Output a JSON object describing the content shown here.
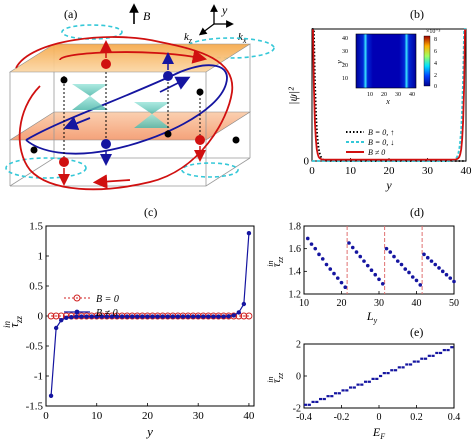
{
  "figure": {
    "panel_labels": {
      "a": "(a)",
      "b": "(b)",
      "c": "(c)",
      "d": "(d)",
      "e": "(e)"
    },
    "panel_a": {
      "axis_B": "B",
      "axis_y": "y",
      "axis_kz": "k",
      "axis_kz_sub": "z",
      "axis_kx": "k",
      "axis_kx_sub": "x"
    },
    "panel_b": {
      "ylabel": "|ψ|²",
      "xlabel": "y",
      "inset": {
        "xlabel": "x",
        "ylabel": "y",
        "ticks": [
          "10",
          "20",
          "30",
          "40"
        ],
        "colorbar_ticks": [
          "8",
          "6",
          "4",
          "2",
          "0"
        ],
        "colorbar_exponent": "×10⁻³"
      },
      "legend": [
        "B = 0, ↑",
        "B = 0, ↓",
        "B ≠ 0"
      ]
    },
    "panel_c": {
      "ylabel": "τ",
      "ylabel_sub": "zz",
      "ylabel_sup": "in",
      "xlabel": "y",
      "legend": [
        "B = 0",
        "B ≠ 0"
      ]
    },
    "panel_d": {
      "ylabel": "τ",
      "ylabel_sub": "zz",
      "ylabel_sup": "in",
      "xlabel": "L",
      "xlabel_sub": "y"
    },
    "panel_e": {
      "ylabel": "τ",
      "ylabel_sub": "zz",
      "ylabel_sup": "in",
      "xlabel": "E",
      "xlabel_sub": "F"
    }
  },
  "chart_data": [
    {
      "panel": "b",
      "type": "line",
      "xlim": [
        0,
        40
      ],
      "ylim": [
        0,
        1
      ],
      "xticks": [
        "0",
        "10",
        "20",
        "30",
        "40"
      ],
      "yticks": [
        "0"
      ],
      "series": [
        {
          "name": "B = 0, ↑",
          "color": "#000000",
          "style": "dotted"
        },
        {
          "name": "B = 0, ↓",
          "color": "#35c8d8",
          "style": "dashed"
        },
        {
          "name": "B ≠ 0",
          "color": "#d01010",
          "style": "solid"
        }
      ]
    },
    {
      "panel": "c",
      "type": "line",
      "xlim": [
        0,
        41
      ],
      "ylim": [
        -1.5,
        1.5
      ],
      "xticks": [
        "0",
        "10",
        "20",
        "30",
        "40"
      ],
      "yticks": [
        "-1.5",
        "-1",
        "-0.5",
        "0",
        "0.5",
        "1",
        "1.5"
      ],
      "grid": false,
      "legend_position": "middle-left",
      "series": [
        {
          "name": "B = 0",
          "color": "#d02020",
          "x": [
            1,
            2,
            3,
            4,
            5,
            6,
            7,
            8,
            9,
            10,
            11,
            12,
            13,
            14,
            15,
            16,
            17,
            18,
            19,
            20,
            21,
            22,
            23,
            24,
            25,
            26,
            27,
            28,
            29,
            30,
            31,
            32,
            33,
            34,
            35,
            36,
            37,
            38,
            39,
            40
          ],
          "y": [
            0,
            0,
            0,
            0,
            0,
            0,
            0,
            0,
            0,
            0,
            0,
            0,
            0,
            0,
            0,
            0,
            0,
            0,
            0,
            0,
            0,
            0,
            0,
            0,
            0,
            0,
            0,
            0,
            0,
            0,
            0,
            0,
            0,
            0,
            0,
            0,
            0,
            0,
            0,
            0
          ]
        },
        {
          "name": "B ≠ 0",
          "color": "#1515a0",
          "x": [
            1,
            2,
            3,
            4,
            5,
            6,
            7,
            8,
            9,
            10,
            11,
            12,
            13,
            14,
            15,
            16,
            17,
            18,
            19,
            20,
            21,
            22,
            23,
            24,
            25,
            26,
            27,
            28,
            29,
            30,
            31,
            32,
            33,
            34,
            35,
            36,
            37,
            38,
            39,
            40
          ],
          "y": [
            -1.33,
            -0.2,
            -0.07,
            -0.03,
            -0.02,
            -0.01,
            -0.01,
            -0.01,
            -0.01,
            -0.01,
            -0.01,
            -0.01,
            -0.01,
            -0.01,
            -0.01,
            -0.01,
            -0.01,
            -0.01,
            -0.01,
            -0.01,
            -0.01,
            -0.01,
            -0.01,
            -0.01,
            -0.01,
            -0.01,
            -0.01,
            -0.01,
            -0.01,
            -0.01,
            -0.01,
            -0.01,
            -0.01,
            -0.01,
            -0.01,
            -0.005,
            0.01,
            0.06,
            0.2,
            1.38
          ]
        }
      ]
    },
    {
      "panel": "d",
      "type": "scatter",
      "xlim": [
        10,
        50
      ],
      "ylim": [
        1.2,
        1.8
      ],
      "xticks": [
        "10",
        "20",
        "30",
        "40",
        "50"
      ],
      "yticks": [
        "1.2",
        "1.4",
        "1.6",
        "1.8"
      ],
      "color": "#1515a0",
      "vlines": [
        21.5,
        31.5,
        41.5
      ],
      "vline_color": "#e07070",
      "x": [
        11,
        12,
        13,
        14,
        15,
        16,
        17,
        18,
        19,
        20,
        21,
        22,
        23,
        24,
        25,
        26,
        27,
        28,
        29,
        30,
        31,
        32,
        33,
        34,
        35,
        36,
        37,
        38,
        39,
        40,
        41,
        42,
        43,
        44,
        45,
        46,
        47,
        48,
        49,
        50
      ],
      "y": [
        1.69,
        1.64,
        1.6,
        1.55,
        1.51,
        1.46,
        1.42,
        1.38,
        1.34,
        1.3,
        1.26,
        1.65,
        1.61,
        1.57,
        1.53,
        1.49,
        1.45,
        1.41,
        1.37,
        1.33,
        1.29,
        1.6,
        1.57,
        1.53,
        1.49,
        1.46,
        1.42,
        1.39,
        1.35,
        1.32,
        1.28,
        1.55,
        1.52,
        1.49,
        1.46,
        1.43,
        1.4,
        1.37,
        1.34,
        1.31
      ]
    },
    {
      "panel": "e",
      "type": "line",
      "xlim": [
        -0.4,
        0.4
      ],
      "ylim": [
        -2,
        2
      ],
      "xticks": [
        "-0.4",
        "-0.2",
        "0",
        "0.2",
        "0.4"
      ],
      "yticks": [
        "-2",
        "0",
        "2"
      ],
      "color": "#1515a0",
      "x": [
        -0.4,
        -0.38,
        -0.36,
        -0.34,
        -0.32,
        -0.3,
        -0.28,
        -0.26,
        -0.24,
        -0.22,
        -0.2,
        -0.18,
        -0.16,
        -0.14,
        -0.12,
        -0.1,
        -0.08,
        -0.06,
        -0.04,
        -0.02,
        0,
        0.02,
        0.04,
        0.06,
        0.08,
        0.1,
        0.12,
        0.14,
        0.16,
        0.18,
        0.2,
        0.22,
        0.24,
        0.26,
        0.28,
        0.3,
        0.32,
        0.34,
        0.36,
        0.38,
        0.4
      ],
      "y": [
        -1.8,
        -1.8,
        -1.62,
        -1.62,
        -1.44,
        -1.44,
        -1.26,
        -1.26,
        -1.08,
        -1.08,
        -0.9,
        -0.9,
        -0.72,
        -0.72,
        -0.54,
        -0.54,
        -0.36,
        -0.36,
        -0.18,
        -0.18,
        0,
        0.18,
        0.18,
        0.36,
        0.36,
        0.54,
        0.54,
        0.72,
        0.72,
        0.9,
        0.9,
        1.08,
        1.08,
        1.26,
        1.26,
        1.44,
        1.44,
        1.62,
        1.62,
        1.8,
        1.8
      ]
    }
  ]
}
